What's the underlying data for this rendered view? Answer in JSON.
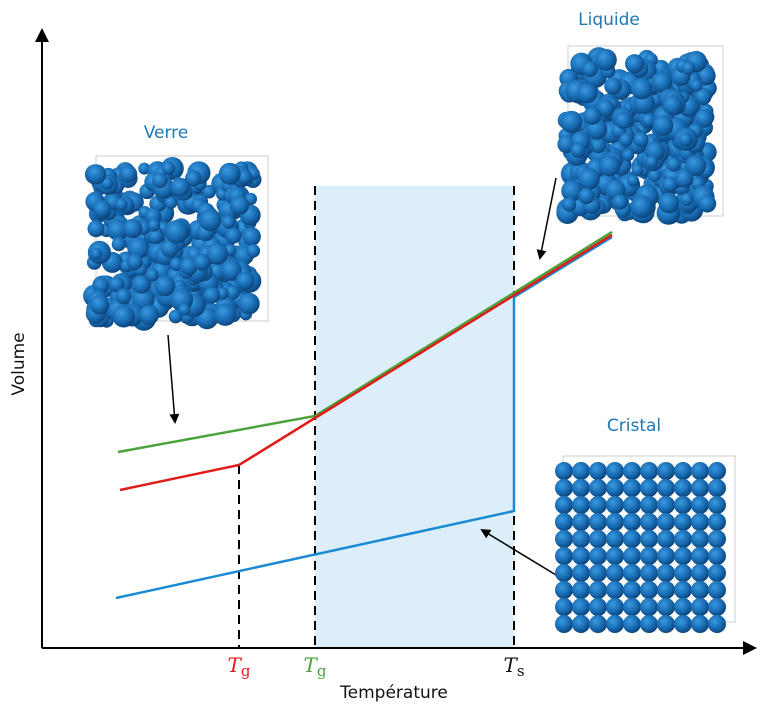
{
  "axes": {
    "y_label": "Volume",
    "x_label": "Température"
  },
  "x_ticks": [
    {
      "symbol": "T",
      "subscript": "g"
    },
    {
      "symbol": "T",
      "subscript": "g"
    },
    {
      "symbol": "T",
      "subscript": "s"
    }
  ],
  "states": {
    "glass": "Verre",
    "liquid": "Liquide",
    "crystal": "Cristal"
  }
}
